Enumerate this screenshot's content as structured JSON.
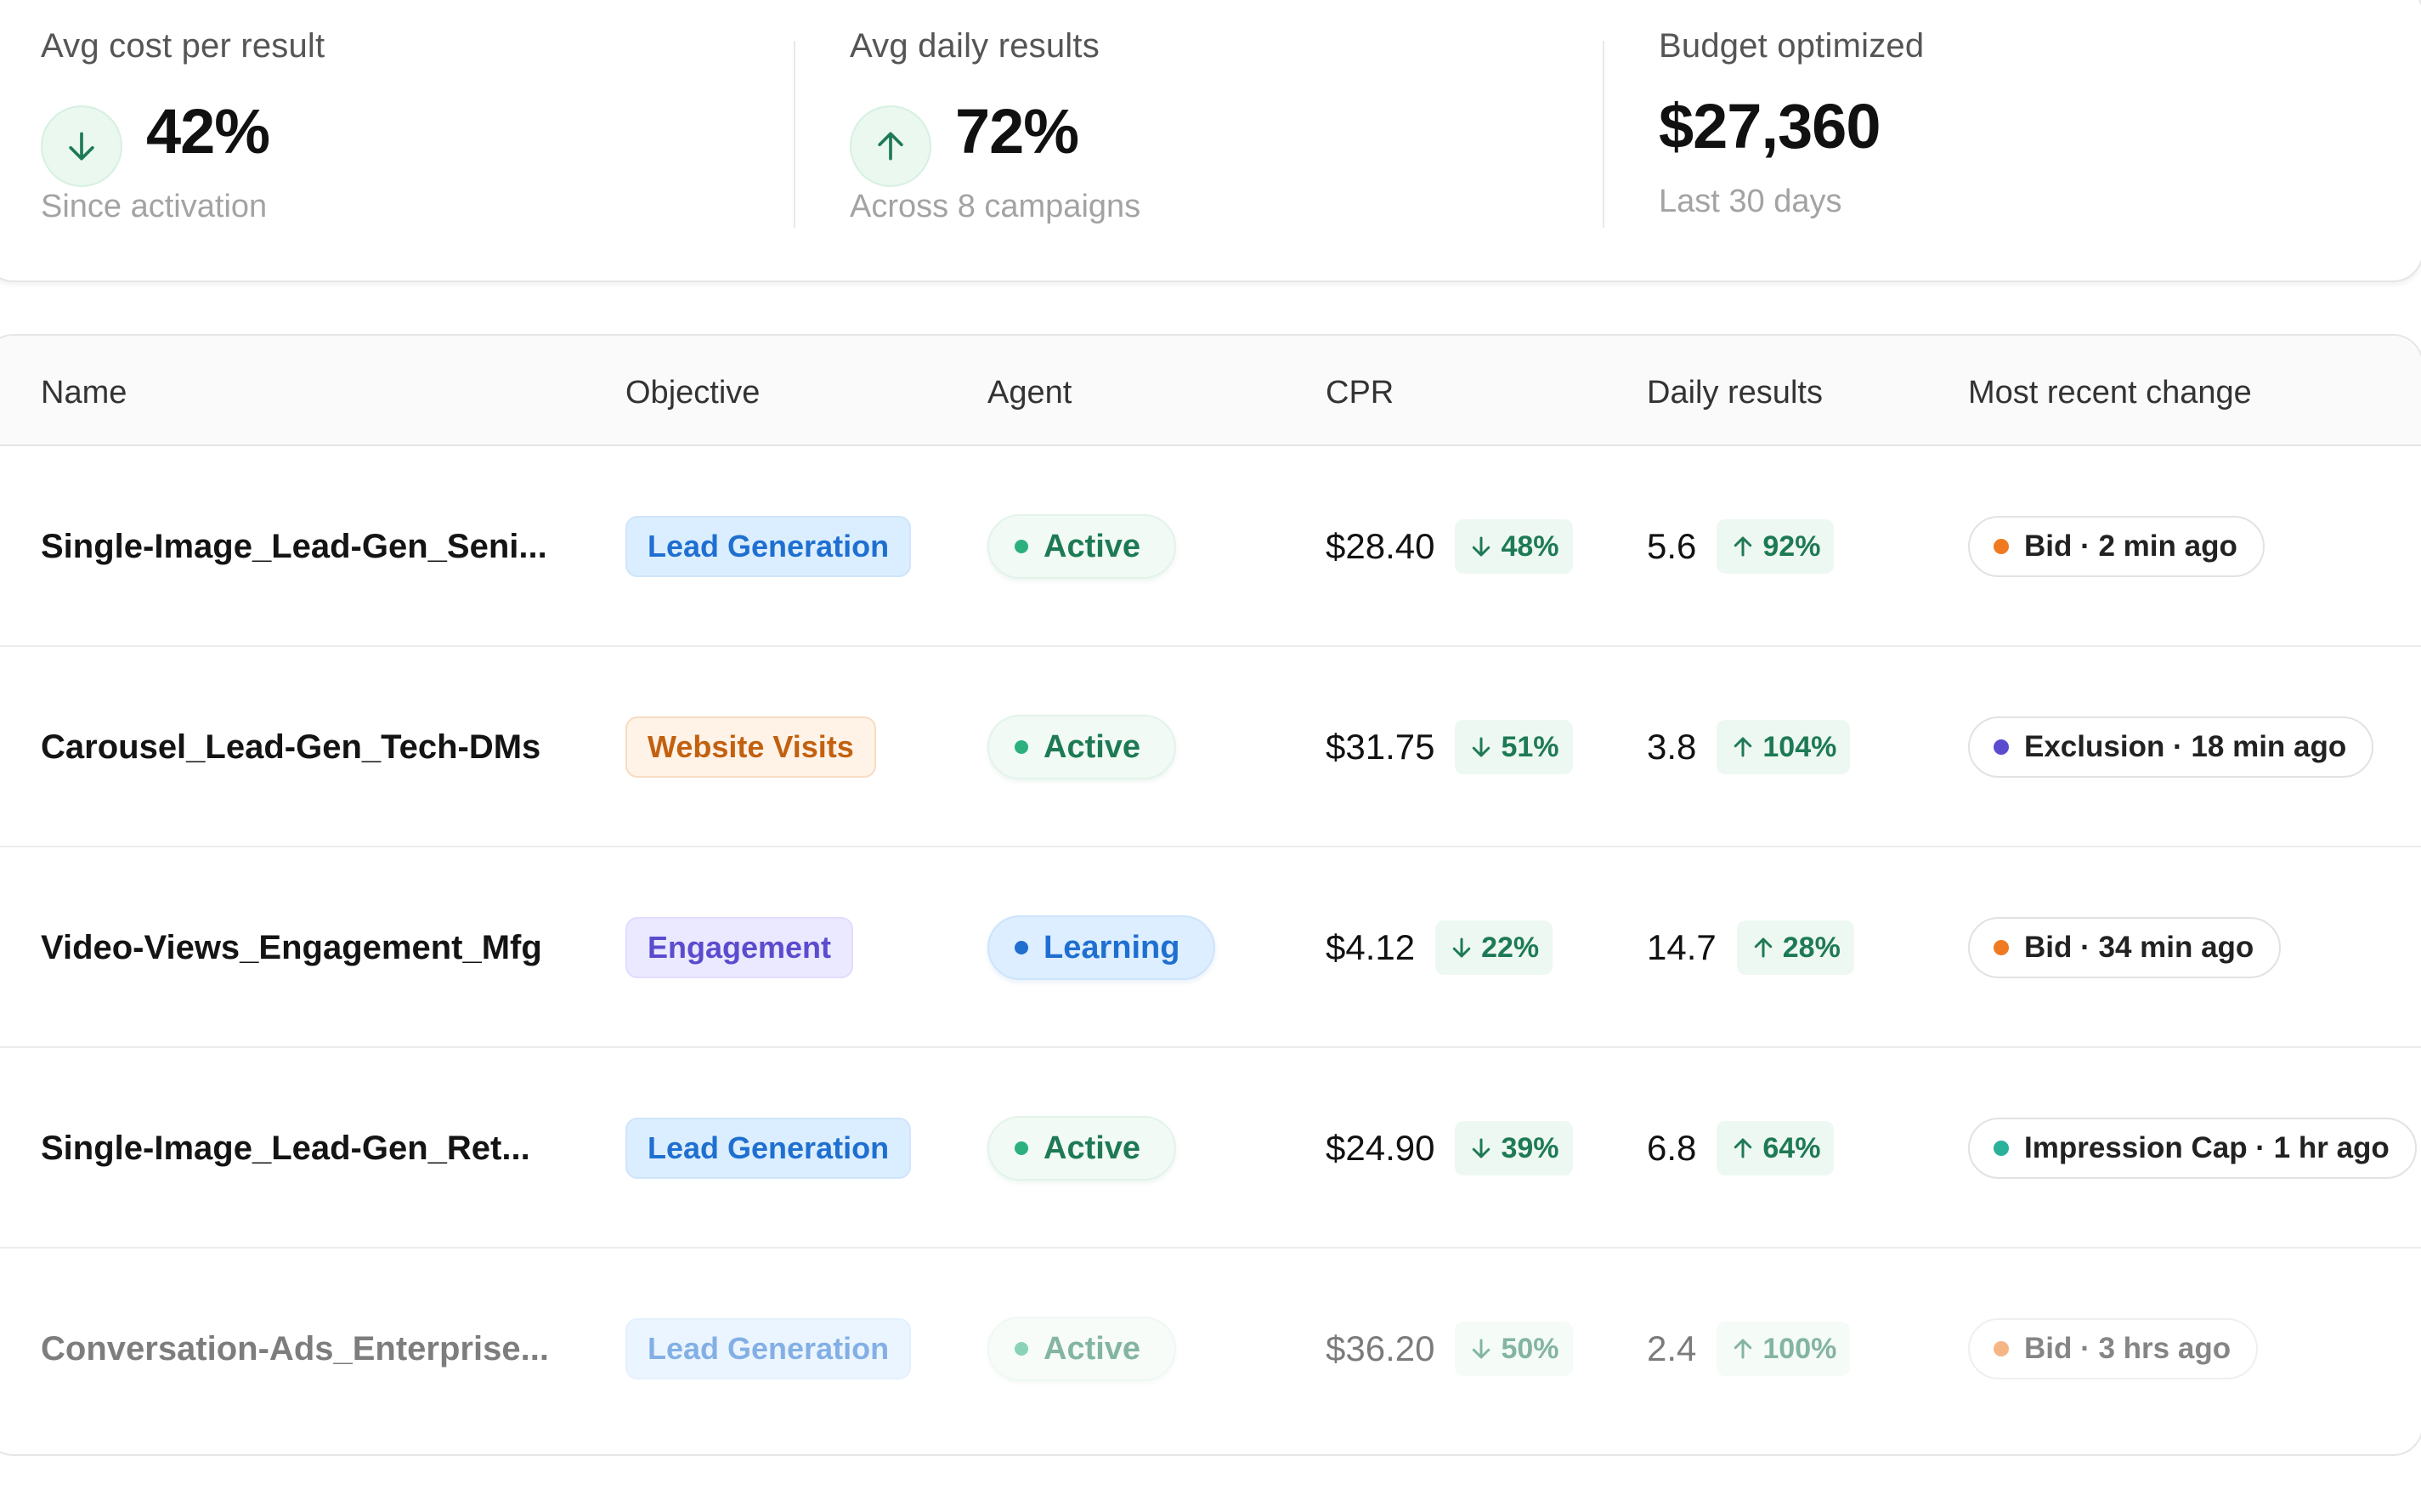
{
  "stats": [
    {
      "label": "Avg cost per result",
      "value": "42%",
      "sub": "Since activation",
      "icon": "arrow-down-icon"
    },
    {
      "label": "Avg daily results",
      "value": "72%",
      "sub": "Across 8 campaigns",
      "icon": "arrow-up-icon"
    },
    {
      "label": "Budget optimized",
      "value": "$27,360",
      "sub": "Last 30 days"
    }
  ],
  "table": {
    "headers": {
      "name": "Name",
      "objective": "Objective",
      "agent": "Agent",
      "cpr": "CPR",
      "daily": "Daily results",
      "change": "Most recent change"
    },
    "rows": [
      {
        "name": "Single-Image_Lead-Gen_Seni...",
        "objective": "Lead Generation",
        "agent": "Active",
        "cpr": "$28.40",
        "cpr_delta": "48%",
        "daily": "5.6",
        "daily_delta": "92%",
        "change": "Bid · 2 min ago",
        "change_color": "#f07a22"
      },
      {
        "name": "Carousel_Lead-Gen_Tech-DMs",
        "objective": "Website Visits",
        "agent": "Active",
        "cpr": "$31.75",
        "cpr_delta": "51%",
        "daily": "3.8",
        "daily_delta": "104%",
        "change": "Exclusion · 18 min ago",
        "change_color": "#5b4ccf"
      },
      {
        "name": "Video-Views_Engagement_Mfg",
        "objective": "Engagement",
        "agent": "Learning",
        "cpr": "$4.12",
        "cpr_delta": "22%",
        "daily": "14.7",
        "daily_delta": "28%",
        "change": "Bid · 34 min ago",
        "change_color": "#f07a22"
      },
      {
        "name": "Single-Image_Lead-Gen_Ret...",
        "objective": "Lead Generation",
        "agent": "Active",
        "cpr": "$24.90",
        "cpr_delta": "39%",
        "daily": "6.8",
        "daily_delta": "64%",
        "change": "Impression Cap · 1 hr ago",
        "change_color": "#2bb09a"
      },
      {
        "name": "Conversation-Ads_Enterprise...",
        "objective": "Lead Generation",
        "agent": "Active",
        "cpr": "$36.20",
        "cpr_delta": "50%",
        "daily": "2.4",
        "daily_delta": "100%",
        "change": "Bid · 3 hrs ago",
        "change_color": "#f07a22"
      }
    ]
  },
  "colors": {
    "positive": "#1e7a55",
    "lead": "#1f6fd1",
    "web": "#c2610f",
    "engagement": "#5b4ccf"
  }
}
